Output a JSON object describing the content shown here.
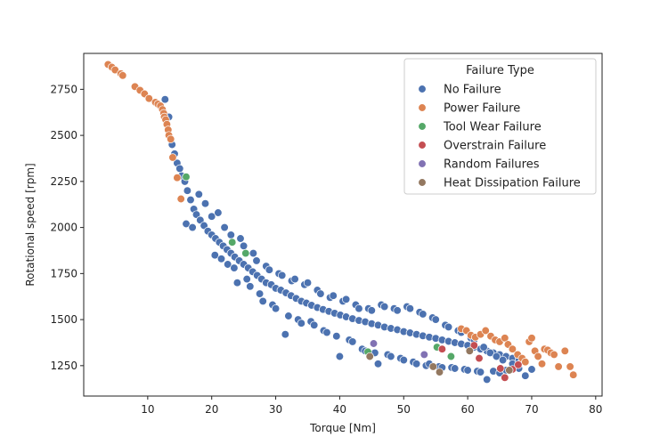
{
  "chart_data": {
    "type": "scatter",
    "title": "",
    "xlabel": "Torque [Nm]",
    "ylabel": "Rotational speed [rpm]",
    "xlim": [
      0,
      81
    ],
    "ylim": [
      1085,
      2945
    ],
    "x_ticks": [
      10,
      20,
      30,
      40,
      50,
      60,
      70,
      80
    ],
    "y_ticks": [
      1250,
      1500,
      1750,
      2000,
      2250,
      2500,
      2750
    ],
    "grid": false,
    "legend": {
      "title": "Failure Type",
      "placement": "top-right",
      "entries": [
        "No Failure",
        "Power Failure",
        "Tool Wear Failure",
        "Overstrain Failure",
        "Random Failures",
        "Heat Dissipation Failure"
      ]
    },
    "series": [
      {
        "name": "No Failure",
        "color": "#4c72b0",
        "points": [
          [
            12.7,
            2695
          ],
          [
            13.3,
            2600
          ],
          [
            13.8,
            2450
          ],
          [
            14.2,
            2400
          ],
          [
            14.6,
            2350
          ],
          [
            15.0,
            2320
          ],
          [
            15.3,
            2280
          ],
          [
            15.8,
            2250
          ],
          [
            16.2,
            2200
          ],
          [
            16.7,
            2150
          ],
          [
            17.2,
            2100
          ],
          [
            17.6,
            2070
          ],
          [
            18.2,
            2040
          ],
          [
            18.8,
            2010
          ],
          [
            19.4,
            1980
          ],
          [
            20.0,
            1960
          ],
          [
            20.6,
            1940
          ],
          [
            21.2,
            1920
          ],
          [
            21.8,
            1900
          ],
          [
            22.4,
            1880
          ],
          [
            23.0,
            1860
          ],
          [
            23.6,
            1840
          ],
          [
            24.3,
            1820
          ],
          [
            25.0,
            1800
          ],
          [
            25.7,
            1780
          ],
          [
            26.4,
            1760
          ],
          [
            27.1,
            1740
          ],
          [
            27.8,
            1720
          ],
          [
            28.5,
            1700
          ],
          [
            29.3,
            1690
          ],
          [
            30.0,
            1670
          ],
          [
            30.8,
            1660
          ],
          [
            31.6,
            1645
          ],
          [
            32.4,
            1630
          ],
          [
            33.2,
            1615
          ],
          [
            34.0,
            1600
          ],
          [
            34.8,
            1590
          ],
          [
            35.6,
            1578
          ],
          [
            36.5,
            1565
          ],
          [
            37.4,
            1555
          ],
          [
            38.3,
            1545
          ],
          [
            39.2,
            1535
          ],
          [
            40.1,
            1525
          ],
          [
            41.0,
            1515
          ],
          [
            42.0,
            1505
          ],
          [
            43.0,
            1495
          ],
          [
            44.0,
            1488
          ],
          [
            45.0,
            1478
          ],
          [
            46.0,
            1470
          ],
          [
            47.0,
            1460
          ],
          [
            48.0,
            1452
          ],
          [
            49.0,
            1445
          ],
          [
            50.0,
            1435
          ],
          [
            51.0,
            1428
          ],
          [
            52.0,
            1420
          ],
          [
            53.0,
            1412
          ],
          [
            54.0,
            1405
          ],
          [
            55.0,
            1398
          ],
          [
            56.0,
            1390
          ],
          [
            57.0,
            1382
          ],
          [
            58.0,
            1375
          ],
          [
            59.0,
            1368
          ],
          [
            60.0,
            1360
          ],
          [
            61.0,
            1350
          ],
          [
            62.0,
            1340
          ],
          [
            63.0,
            1330
          ],
          [
            64.0,
            1320
          ],
          [
            65.0,
            1310
          ],
          [
            66.0,
            1300
          ],
          [
            67.0,
            1290
          ],
          [
            68.0,
            1280
          ],
          [
            16.0,
            2020
          ],
          [
            17.0,
            2000
          ],
          [
            18.0,
            2180
          ],
          [
            19.0,
            2130
          ],
          [
            20.0,
            2060
          ],
          [
            20.5,
            1850
          ],
          [
            21.0,
            2080
          ],
          [
            21.5,
            1830
          ],
          [
            22.0,
            2000
          ],
          [
            22.5,
            1800
          ],
          [
            23.0,
            1960
          ],
          [
            23.5,
            1780
          ],
          [
            24.0,
            1700
          ],
          [
            24.5,
            1940
          ],
          [
            25.0,
            1900
          ],
          [
            25.5,
            1720
          ],
          [
            26.0,
            1680
          ],
          [
            26.5,
            1860
          ],
          [
            27.0,
            1820
          ],
          [
            27.5,
            1640
          ],
          [
            28.0,
            1600
          ],
          [
            28.5,
            1790
          ],
          [
            29.0,
            1770
          ],
          [
            29.5,
            1580
          ],
          [
            30.0,
            1560
          ],
          [
            30.5,
            1750
          ],
          [
            31.0,
            1740
          ],
          [
            31.5,
            1420
          ],
          [
            32.0,
            1520
          ],
          [
            32.5,
            1710
          ],
          [
            33.0,
            1720
          ],
          [
            33.5,
            1500
          ],
          [
            34.0,
            1480
          ],
          [
            34.5,
            1690
          ],
          [
            35.0,
            1700
          ],
          [
            35.5,
            1490
          ],
          [
            36.0,
            1470
          ],
          [
            36.5,
            1660
          ],
          [
            37.0,
            1640
          ],
          [
            37.5,
            1440
          ],
          [
            38.0,
            1430
          ],
          [
            38.5,
            1620
          ],
          [
            39.0,
            1630
          ],
          [
            39.5,
            1410
          ],
          [
            40.0,
            1300
          ],
          [
            40.5,
            1600
          ],
          [
            41.0,
            1610
          ],
          [
            41.5,
            1390
          ],
          [
            42.0,
            1380
          ],
          [
            42.5,
            1580
          ],
          [
            43.0,
            1560
          ],
          [
            43.5,
            1340
          ],
          [
            44.0,
            1330
          ],
          [
            44.5,
            1560
          ],
          [
            45.0,
            1550
          ],
          [
            45.5,
            1320
          ],
          [
            46.0,
            1260
          ],
          [
            46.5,
            1580
          ],
          [
            47.0,
            1570
          ],
          [
            47.5,
            1310
          ],
          [
            48.0,
            1300
          ],
          [
            48.5,
            1560
          ],
          [
            49.0,
            1550
          ],
          [
            49.5,
            1290
          ],
          [
            50.0,
            1280
          ],
          [
            50.5,
            1570
          ],
          [
            51.0,
            1560
          ],
          [
            51.5,
            1270
          ],
          [
            52.0,
            1260
          ],
          [
            52.5,
            1540
          ],
          [
            53.0,
            1530
          ],
          [
            53.5,
            1250
          ],
          [
            54.0,
            1260
          ],
          [
            54.5,
            1510
          ],
          [
            55.0,
            1500
          ],
          [
            55.5,
            1245
          ],
          [
            56.0,
            1240
          ],
          [
            56.5,
            1470
          ],
          [
            57.0,
            1460
          ],
          [
            57.5,
            1240
          ],
          [
            58.0,
            1235
          ],
          [
            58.5,
            1440
          ],
          [
            59.0,
            1430
          ],
          [
            59.5,
            1230
          ],
          [
            60.0,
            1225
          ],
          [
            60.5,
            1400
          ],
          [
            61.0,
            1390
          ],
          [
            61.5,
            1220
          ],
          [
            62.0,
            1215
          ],
          [
            62.5,
            1350
          ],
          [
            63.0,
            1175
          ],
          [
            63.5,
            1320
          ],
          [
            64.0,
            1220
          ],
          [
            64.5,
            1300
          ],
          [
            65.0,
            1210
          ],
          [
            65.5,
            1280
          ],
          [
            66.0,
            1225
          ],
          [
            67.0,
            1260
          ],
          [
            68.0,
            1235
          ],
          [
            69.0,
            1195
          ],
          [
            70.0,
            1230
          ]
        ]
      },
      {
        "name": "Power Failure",
        "color": "#dd8452",
        "points": [
          [
            3.8,
            2885
          ],
          [
            4.4,
            2870
          ],
          [
            4.9,
            2855
          ],
          [
            5.8,
            2835
          ],
          [
            6.1,
            2825
          ],
          [
            8.0,
            2765
          ],
          [
            8.8,
            2745
          ],
          [
            9.5,
            2725
          ],
          [
            10.2,
            2700
          ],
          [
            11.2,
            2680
          ],
          [
            11.6,
            2670
          ],
          [
            12.0,
            2660
          ],
          [
            12.3,
            2640
          ],
          [
            12.5,
            2620
          ],
          [
            12.6,
            2600
          ],
          [
            12.8,
            2585
          ],
          [
            13.0,
            2560
          ],
          [
            13.2,
            2530
          ],
          [
            13.3,
            2500
          ],
          [
            13.6,
            2480
          ],
          [
            13.9,
            2380
          ],
          [
            14.6,
            2270
          ],
          [
            15.2,
            2155
          ],
          [
            59.0,
            1450
          ],
          [
            59.8,
            1440
          ],
          [
            60.5,
            1415
          ],
          [
            61.2,
            1405
          ],
          [
            62.0,
            1420
          ],
          [
            62.8,
            1440
          ],
          [
            63.6,
            1410
          ],
          [
            64.3,
            1390
          ],
          [
            65.0,
            1380
          ],
          [
            65.8,
            1400
          ],
          [
            66.3,
            1365
          ],
          [
            67.0,
            1340
          ],
          [
            67.8,
            1310
          ],
          [
            68.5,
            1290
          ],
          [
            69.0,
            1270
          ],
          [
            69.6,
            1380
          ],
          [
            70.0,
            1400
          ],
          [
            70.5,
            1330
          ],
          [
            71.0,
            1300
          ],
          [
            71.6,
            1260
          ],
          [
            72.0,
            1340
          ],
          [
            72.5,
            1335
          ],
          [
            73.0,
            1320
          ],
          [
            73.5,
            1310
          ],
          [
            74.2,
            1245
          ],
          [
            75.2,
            1330
          ],
          [
            76.0,
            1245
          ],
          [
            76.5,
            1200
          ]
        ]
      },
      {
        "name": "Tool Wear Failure",
        "color": "#55a868",
        "points": [
          [
            16.0,
            2275
          ],
          [
            23.2,
            1920
          ],
          [
            25.3,
            1860
          ],
          [
            44.4,
            1325
          ],
          [
            55.2,
            1350
          ],
          [
            57.4,
            1300
          ]
        ]
      },
      {
        "name": "Overstrain Failure",
        "color": "#c44e52",
        "points": [
          [
            56.0,
            1340
          ],
          [
            61.0,
            1360
          ],
          [
            61.8,
            1290
          ],
          [
            65.1,
            1235
          ],
          [
            65.8,
            1185
          ],
          [
            67.0,
            1230
          ],
          [
            67.9,
            1255
          ]
        ]
      },
      {
        "name": "Random Failures",
        "color": "#8172b3",
        "points": [
          [
            45.3,
            1370
          ],
          [
            53.2,
            1310
          ]
        ]
      },
      {
        "name": "Heat Dissipation Failure",
        "color": "#937860",
        "points": [
          [
            44.7,
            1300
          ],
          [
            54.6,
            1245
          ],
          [
            55.6,
            1215
          ],
          [
            60.3,
            1330
          ],
          [
            66.5,
            1225
          ]
        ]
      }
    ]
  }
}
